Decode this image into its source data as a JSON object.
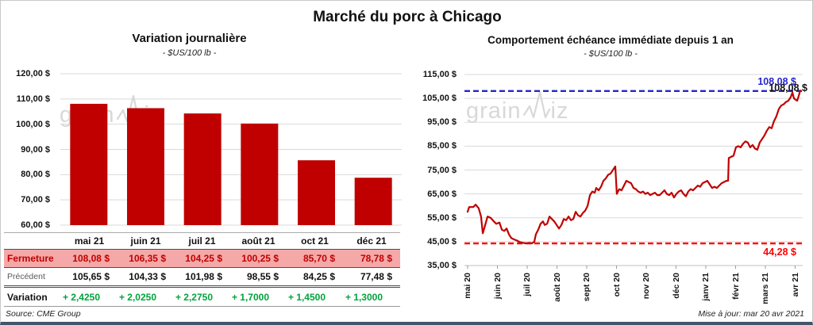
{
  "page": {
    "title": "Marché du porc à Chicago",
    "source": "Source: CME Group",
    "updated": "Mise à jour: mar 20 avr 2021",
    "watermark_prefix": "grain",
    "watermark_suffix": "iz",
    "watermark_name": "grainwiz"
  },
  "colors": {
    "series_red": "#C00000",
    "ref_blue": "#2626CC",
    "ref_red": "#FF0000",
    "grid": "#D9D9D9",
    "axis": "#BFBFBF",
    "table_pink": "#F5A8A8",
    "green": "#00A33C"
  },
  "chart_data": [
    {
      "type": "bar",
      "title": "Variation  journalière",
      "subtitle": "- $US/100 lb -",
      "categories": [
        "mai 21",
        "juin 21",
        "juil 21",
        "août 21",
        "oct 21",
        "déc 21"
      ],
      "values": [
        108.08,
        106.35,
        104.25,
        100.25,
        85.7,
        78.78
      ],
      "ylim": [
        60,
        120
      ],
      "y_tick_values": [
        120,
        110,
        100,
        90,
        80,
        70,
        60
      ],
      "y_ticks": [
        "120,00 $",
        "110,00 $",
        "100,00 $",
        "90,00 $",
        "80,00 $",
        "70,00 $",
        "60,00 $"
      ],
      "bar_color": "#C00000",
      "grid": true,
      "legend": false
    },
    {
      "type": "line",
      "title": "Comportement  échéance immédiate depuis 1 an",
      "subtitle": "- $US/100 lb -",
      "x_ticks": [
        "mai 20",
        "juin 20",
        "juil 20",
        "août 20",
        "sept 20",
        "oct 20",
        "nov 20",
        "déc 20",
        "janv 21",
        "févr 21",
        "mars 21",
        "avr 21"
      ],
      "ylim": [
        35,
        115
      ],
      "y_tick_values": [
        115,
        105,
        95,
        85,
        75,
        65,
        55,
        45,
        35
      ],
      "y_ticks": [
        "115,00 $",
        "105,00 $",
        "95,00 $",
        "85,00 $",
        "75,00 $",
        "65,00 $",
        "55,00 $",
        "45,00 $",
        "35,00 $"
      ],
      "line_color": "#C00000",
      "grid": true,
      "legend": false,
      "ref_max": {
        "value": 108.08,
        "label": "108,08 $",
        "color": "#2626CC"
      },
      "ref_min": {
        "value": 44.28,
        "label": "44,28 $",
        "color": "#FF0000"
      },
      "points": [
        [
          0,
          57.5
        ],
        [
          0.05,
          59.5
        ],
        [
          0.19,
          59.5
        ],
        [
          0.27,
          60.5
        ],
        [
          0.37,
          59
        ],
        [
          0.45,
          55.5
        ],
        [
          0.51,
          48.5
        ],
        [
          0.59,
          52
        ],
        [
          0.67,
          55.5
        ],
        [
          0.77,
          55
        ],
        [
          0.88,
          53.5
        ],
        [
          0.96,
          52.5
        ],
        [
          1.07,
          53
        ],
        [
          1.15,
          50
        ],
        [
          1.23,
          49.5
        ],
        [
          1.31,
          50.5
        ],
        [
          1.39,
          48
        ],
        [
          1.47,
          46.5
        ],
        [
          1.55,
          46
        ],
        [
          1.65,
          45.5
        ],
        [
          1.76,
          44.8
        ],
        [
          1.87,
          44.5
        ],
        [
          1.97,
          44.3
        ],
        [
          2.08,
          44.5
        ],
        [
          2.16,
          44.3
        ],
        [
          2.24,
          45
        ],
        [
          2.29,
          48
        ],
        [
          2.37,
          50
        ],
        [
          2.45,
          52.5
        ],
        [
          2.53,
          53.5
        ],
        [
          2.59,
          52
        ],
        [
          2.67,
          52.5
        ],
        [
          2.75,
          55.5
        ],
        [
          2.83,
          54.5
        ],
        [
          2.91,
          53.5
        ],
        [
          2.99,
          52
        ],
        [
          3.07,
          50.5
        ],
        [
          3.15,
          52
        ],
        [
          3.23,
          54.5
        ],
        [
          3.31,
          54
        ],
        [
          3.39,
          55.5
        ],
        [
          3.47,
          54
        ],
        [
          3.55,
          54.5
        ],
        [
          3.63,
          57.5
        ],
        [
          3.71,
          56
        ],
        [
          3.79,
          55.5
        ],
        [
          3.87,
          57
        ],
        [
          3.95,
          58
        ],
        [
          4.03,
          60
        ],
        [
          4.11,
          64.5
        ],
        [
          4.19,
          66
        ],
        [
          4.27,
          65.5
        ],
        [
          4.32,
          67.5
        ],
        [
          4.4,
          66.5
        ],
        [
          4.48,
          68
        ],
        [
          4.56,
          70.5
        ],
        [
          4.64,
          71.5
        ],
        [
          4.72,
          73
        ],
        [
          4.8,
          73.5
        ],
        [
          4.88,
          75
        ],
        [
          4.96,
          76.5
        ],
        [
          5.01,
          65
        ],
        [
          5.09,
          67
        ],
        [
          5.17,
          66.5
        ],
        [
          5.25,
          68.5
        ],
        [
          5.33,
          70.5
        ],
        [
          5.41,
          70
        ],
        [
          5.49,
          69.5
        ],
        [
          5.57,
          67.5
        ],
        [
          5.65,
          67
        ],
        [
          5.73,
          66
        ],
        [
          5.81,
          65.5
        ],
        [
          5.89,
          66
        ],
        [
          5.97,
          65
        ],
        [
          6.05,
          65.5
        ],
        [
          6.13,
          64.5
        ],
        [
          6.21,
          65
        ],
        [
          6.29,
          65.5
        ],
        [
          6.37,
          64.5
        ],
        [
          6.45,
          64.5
        ],
        [
          6.53,
          65.5
        ],
        [
          6.61,
          66.5
        ],
        [
          6.69,
          65
        ],
        [
          6.77,
          64.5
        ],
        [
          6.85,
          65.5
        ],
        [
          6.93,
          63.5
        ],
        [
          7.01,
          65
        ],
        [
          7.09,
          66
        ],
        [
          7.17,
          66.5
        ],
        [
          7.25,
          65
        ],
        [
          7.33,
          64
        ],
        [
          7.41,
          66
        ],
        [
          7.49,
          67
        ],
        [
          7.57,
          66.5
        ],
        [
          7.65,
          67.5
        ],
        [
          7.73,
          68.5
        ],
        [
          7.81,
          68
        ],
        [
          7.89,
          69.5
        ],
        [
          7.97,
          70
        ],
        [
          8.05,
          70.5
        ],
        [
          8.13,
          69
        ],
        [
          8.21,
          67.5
        ],
        [
          8.29,
          68
        ],
        [
          8.37,
          67.5
        ],
        [
          8.45,
          68.5
        ],
        [
          8.53,
          69.5
        ],
        [
          8.61,
          70
        ],
        [
          8.69,
          70.5
        ],
        [
          8.75,
          70.5
        ],
        [
          8.77,
          80
        ],
        [
          8.85,
          80.5
        ],
        [
          8.93,
          81
        ],
        [
          9.01,
          84.5
        ],
        [
          9.09,
          85
        ],
        [
          9.17,
          84.5
        ],
        [
          9.25,
          86
        ],
        [
          9.33,
          87
        ],
        [
          9.41,
          86.5
        ],
        [
          9.49,
          84.5
        ],
        [
          9.57,
          85.5
        ],
        [
          9.65,
          84
        ],
        [
          9.73,
          83.5
        ],
        [
          9.81,
          86.5
        ],
        [
          9.89,
          88
        ],
        [
          9.97,
          89.5
        ],
        [
          10.05,
          91.5
        ],
        [
          10.13,
          93
        ],
        [
          10.21,
          92.5
        ],
        [
          10.29,
          95.5
        ],
        [
          10.37,
          97.5
        ],
        [
          10.45,
          100.5
        ],
        [
          10.53,
          102
        ],
        [
          10.61,
          102.5
        ],
        [
          10.69,
          103.5
        ],
        [
          10.77,
          104
        ],
        [
          10.85,
          105.5
        ],
        [
          10.91,
          107.5
        ],
        [
          10.96,
          105
        ],
        [
          11.01,
          104.5
        ],
        [
          11.07,
          104
        ],
        [
          11.12,
          106
        ],
        [
          11.17,
          108.3
        ]
      ]
    }
  ],
  "table": {
    "columns": [
      "mai 21",
      "juin 21",
      "juil 21",
      "août 21",
      "oct 21",
      "déc 21"
    ],
    "rows": [
      {
        "label": "Fermeture",
        "values": [
          "108,08  $",
          "106,35  $",
          "104,25  $",
          "100,25  $",
          "85,70  $",
          "78,78  $"
        ]
      },
      {
        "label": "Précédent",
        "values": [
          "105,65  $",
          "104,33  $",
          "101,98  $",
          "98,55  $",
          "84,25  $",
          "77,48  $"
        ]
      },
      {
        "label": "Variation",
        "values": [
          "+ 2,4250",
          "+ 2,0250",
          "+ 2,2750",
          "+ 1,7000",
          "+ 1,4500",
          "+ 1,3000"
        ]
      }
    ]
  }
}
